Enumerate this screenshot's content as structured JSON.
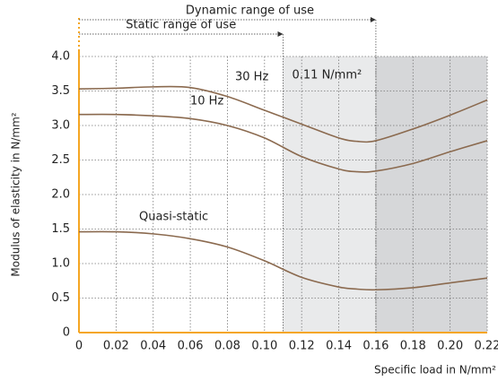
{
  "chart_data": {
    "type": "line",
    "xlabel": "Specific load in N/mm²",
    "ylabel": "Modulus of elasticity in N/mm²",
    "x": [
      0,
      0.02,
      0.04,
      0.06,
      0.08,
      0.1,
      0.12,
      0.14,
      0.15,
      0.16,
      0.18,
      0.2,
      0.22
    ],
    "series": [
      {
        "name": "30 Hz",
        "color": "#8b6a4f",
        "values": [
          3.53,
          3.54,
          3.56,
          3.55,
          3.42,
          3.22,
          3.02,
          2.82,
          2.77,
          2.78,
          2.95,
          3.15,
          3.37
        ]
      },
      {
        "name": "10 Hz",
        "color": "#8b6a4f",
        "values": [
          3.16,
          3.16,
          3.14,
          3.1,
          3.0,
          2.82,
          2.55,
          2.37,
          2.33,
          2.34,
          2.45,
          2.62,
          2.78
        ]
      },
      {
        "name": "Quasi-static",
        "color": "#8b6a4f",
        "values": [
          1.46,
          1.46,
          1.43,
          1.36,
          1.24,
          1.04,
          0.8,
          0.66,
          0.63,
          0.62,
          0.65,
          0.72,
          0.79
        ]
      }
    ],
    "xlim": [
      0,
      0.22
    ],
    "ylim": [
      0,
      4.0
    ],
    "xticks": [
      0,
      0.02,
      0.04,
      0.06,
      0.08,
      {
        "value": 0.1,
        "label": "0.10"
      },
      0.12,
      0.14,
      0.16,
      0.18,
      {
        "value": 0.2,
        "label": "0.20"
      },
      0.22
    ],
    "yticks": [
      0,
      0.5,
      {
        "value": 1,
        "label": "1.0"
      },
      1.5,
      {
        "value": 2,
        "label": "2.0"
      },
      2.5,
      {
        "value": 3,
        "label": "3.0"
      },
      3.5,
      {
        "value": 4,
        "label": "4.0"
      }
    ],
    "grid": true,
    "axis_color": "#f5a623",
    "shaded_regions": [
      {
        "xlim": [
          0.11,
          0.16
        ],
        "color": "#e9eaeb"
      },
      {
        "xlim": [
          0.16,
          0.22
        ],
        "color": "#d6d7d9"
      }
    ],
    "ranges": [
      {
        "label": "Dynamic range of use",
        "xlim": [
          0,
          0.16
        ]
      },
      {
        "label": "Static range of use",
        "xlim": [
          0,
          0.11
        ]
      }
    ],
    "annotation": "0.11 N/mm²"
  }
}
